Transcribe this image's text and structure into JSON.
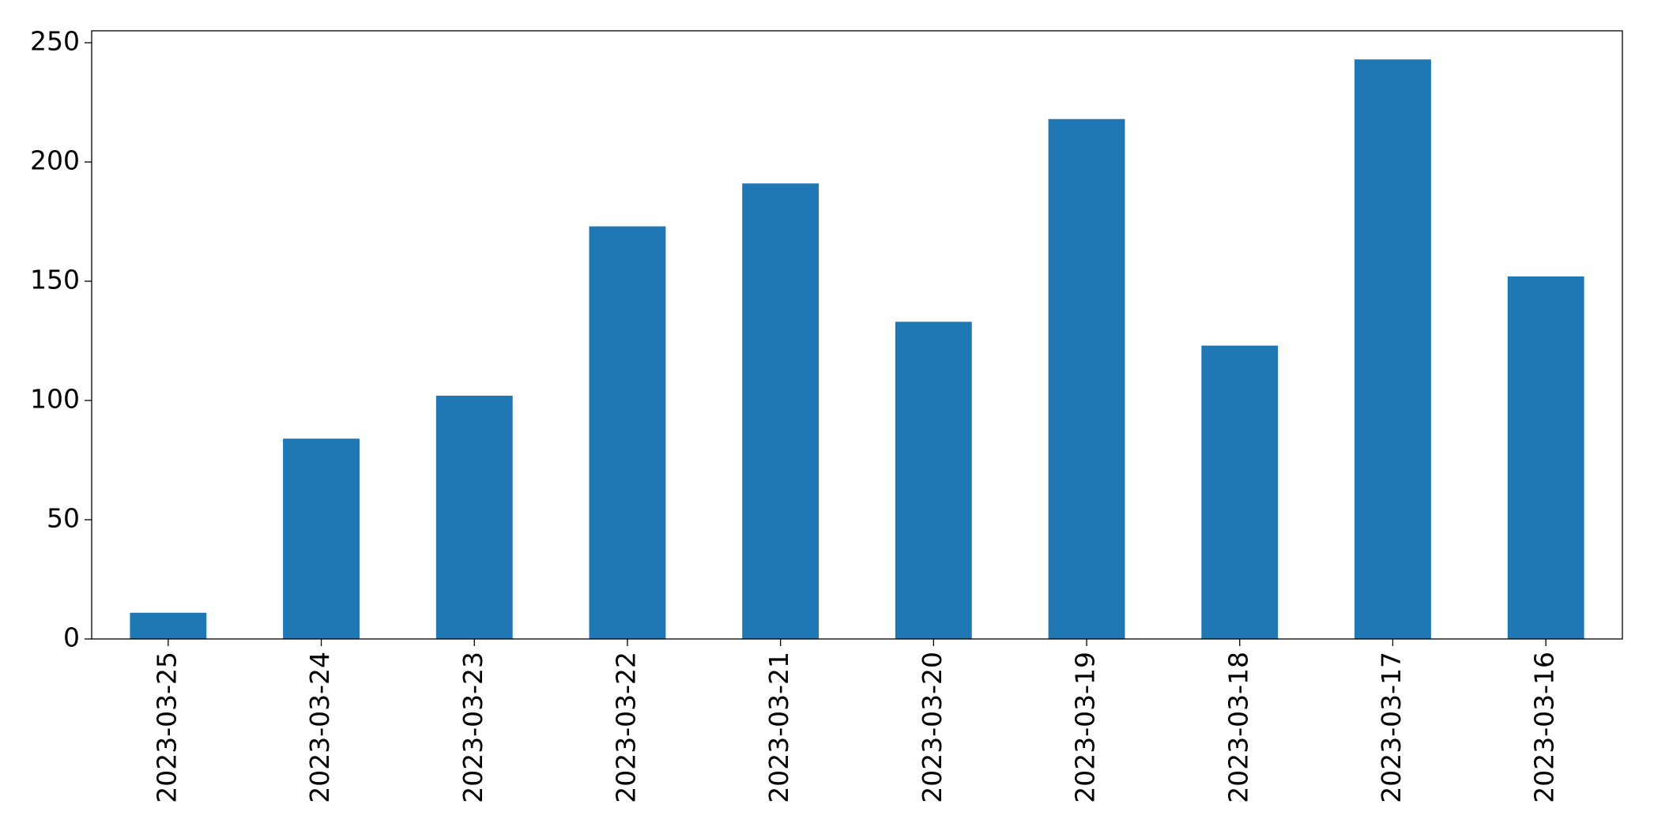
{
  "chart_data": {
    "type": "bar",
    "categories": [
      "2023-03-25",
      "2023-03-24",
      "2023-03-23",
      "2023-03-22",
      "2023-03-21",
      "2023-03-20",
      "2023-03-19",
      "2023-03-18",
      "2023-03-17",
      "2023-03-16"
    ],
    "values": [
      11,
      84,
      102,
      173,
      191,
      133,
      218,
      123,
      243,
      152
    ],
    "color": "#1f77b4",
    "ylim": [
      0,
      255
    ],
    "yticks": [
      0,
      50,
      100,
      150,
      200,
      250
    ],
    "grid": false
  }
}
